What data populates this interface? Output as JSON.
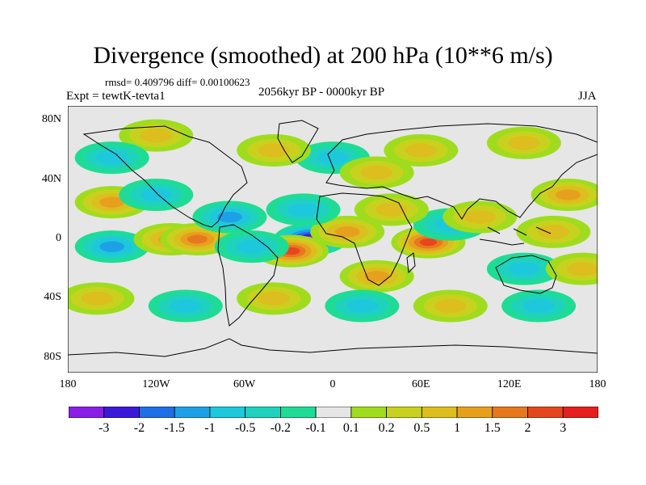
{
  "title": "Divergence (smoothed) at 200 hPa (10**6 m/s)",
  "stats": "rmsd= 0.409796 diff= 0.00100623",
  "experiment": "Expt = tewtK-tevta1",
  "period": "2056kyr BP - 0000kyr BP",
  "season": "JJA",
  "y_axis": {
    "ticks": [
      {
        "label": "80N",
        "lat": 80
      },
      {
        "label": "40N",
        "lat": 40
      },
      {
        "label": "0",
        "lat": 0
      },
      {
        "label": "40S",
        "lat": -40
      },
      {
        "label": "80S",
        "lat": -80
      }
    ]
  },
  "x_axis": {
    "ticks": [
      {
        "label": "180",
        "lon": -180
      },
      {
        "label": "120W",
        "lon": -120
      },
      {
        "label": "60W",
        "lon": -60
      },
      {
        "label": "0",
        "lon": 0
      },
      {
        "label": "60E",
        "lon": 60
      },
      {
        "label": "120E",
        "lon": 120
      },
      {
        "label": "180",
        "lon": 180
      }
    ]
  },
  "colorbar": {
    "colors": [
      "#8a1ee6",
      "#3c19d8",
      "#1e6ee6",
      "#1ea0e6",
      "#1ec8dc",
      "#1ed2be",
      "#1edc96",
      "#e6e6e6",
      "#a0dc1e",
      "#c8d21e",
      "#dcbe1e",
      "#e6a01e",
      "#e6781e",
      "#e6461e",
      "#e61e1e"
    ],
    "labels": [
      "-3",
      "-2",
      "-1.5",
      "-1",
      "-0.5",
      "-0.2",
      "-0.1",
      "0.1",
      "0.2",
      "0.5",
      "1",
      "1.5",
      "2",
      "3"
    ]
  },
  "field": {
    "background_color": "#e6e6e6",
    "anomalies": [
      {
        "lon": -15,
        "lat": 0,
        "value": -3.2
      },
      {
        "lon": -28,
        "lat": -8,
        "value": 2.0
      },
      {
        "lon": 10,
        "lat": 5,
        "value": 1.0
      },
      {
        "lon": 65,
        "lat": -2,
        "value": 2.8
      },
      {
        "lon": 80,
        "lat": 10,
        "value": -0.8
      },
      {
        "lon": -150,
        "lat": -5,
        "value": -1.2
      },
      {
        "lon": -110,
        "lat": 0,
        "value": 1.3
      },
      {
        "lon": -92,
        "lat": 0,
        "value": 1.6
      },
      {
        "lon": -150,
        "lat": 25,
        "value": 1.0
      },
      {
        "lon": -120,
        "lat": 30,
        "value": -0.6
      },
      {
        "lon": -70,
        "lat": 15,
        "value": -1.0
      },
      {
        "lon": -55,
        "lat": -5,
        "value": -0.8
      },
      {
        "lon": 40,
        "lat": 20,
        "value": 0.6
      },
      {
        "lon": 30,
        "lat": -25,
        "value": 1.1
      },
      {
        "lon": 100,
        "lat": 15,
        "value": 0.8
      },
      {
        "lon": 150,
        "lat": 5,
        "value": 0.8
      },
      {
        "lon": 130,
        "lat": -20,
        "value": -0.9
      },
      {
        "lon": 160,
        "lat": 30,
        "value": 1.0
      },
      {
        "lon": -160,
        "lat": -40,
        "value": 0.7
      },
      {
        "lon": -100,
        "lat": -45,
        "value": -0.8
      },
      {
        "lon": -40,
        "lat": -40,
        "value": 0.9
      },
      {
        "lon": 20,
        "lat": -45,
        "value": -0.6
      },
      {
        "lon": 80,
        "lat": -45,
        "value": 0.8
      },
      {
        "lon": 140,
        "lat": -45,
        "value": -0.6
      },
      {
        "lon": 0,
        "lat": 55,
        "value": -0.7
      },
      {
        "lon": -40,
        "lat": 60,
        "value": 0.7
      },
      {
        "lon": 60,
        "lat": 60,
        "value": 0.6
      },
      {
        "lon": 130,
        "lat": 65,
        "value": 0.5
      },
      {
        "lon": -120,
        "lat": 70,
        "value": 0.6
      },
      {
        "lon": 30,
        "lat": 45,
        "value": 0.8
      },
      {
        "lon": -20,
        "lat": 20,
        "value": -0.7
      },
      {
        "lon": -150,
        "lat": 55,
        "value": -0.5
      },
      {
        "lon": 170,
        "lat": -20,
        "value": 0.9
      }
    ]
  }
}
